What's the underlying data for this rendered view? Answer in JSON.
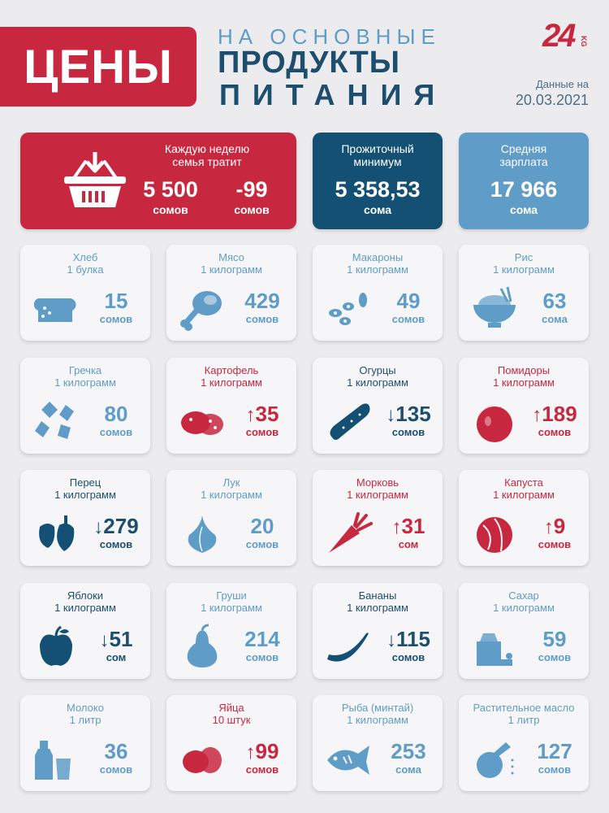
{
  "header": {
    "title": "ЦЕНЫ",
    "subtitle_line1": "НА ОСНОВНЫЕ",
    "subtitle_line2": "ПРОДУКТЫ",
    "subtitle_line3": "ПИТАНИЯ",
    "logo_text": "24",
    "logo_suffix": "KG",
    "date_label": "Данные на",
    "date_value": "20.03.2021"
  },
  "summary": {
    "weekly_label_1": "Каждую неделю",
    "weekly_label_2": "семья тратит",
    "weekly_value": "5 500",
    "weekly_unit": "сомов",
    "weekly_change": "-99",
    "weekly_change_unit": "сомов",
    "minimum_label_1": "Прожиточный",
    "minimum_label_2": "минимум",
    "minimum_value": "5 358,53",
    "minimum_unit": "сома",
    "salary_label_1": "Средняя",
    "salary_label_2": "зарплата",
    "salary_value": "17 966",
    "salary_unit": "сома"
  },
  "colors": {
    "red": "#c8283f",
    "dark": "#135073",
    "light": "#5f9cc7"
  },
  "products": [
    {
      "name": "Хлеб",
      "unit": "1 булка",
      "price": "15",
      "currency": "сомов",
      "trend": "",
      "icon": "bread-icon"
    },
    {
      "name": "Мясо",
      "unit": "1 килограмм",
      "price": "429",
      "currency": "сомов",
      "trend": "",
      "icon": "meat-icon"
    },
    {
      "name": "Макароны",
      "unit": "1 килограмм",
      "price": "49",
      "currency": "сомов",
      "trend": "",
      "icon": "pasta-icon"
    },
    {
      "name": "Рис",
      "unit": "1 килограмм",
      "price": "63",
      "currency": "сома",
      "trend": "",
      "icon": "rice-icon"
    },
    {
      "name": "Гречка",
      "unit": "1 килограмм",
      "price": "80",
      "currency": "сомов",
      "trend": "",
      "icon": "buckwheat-icon"
    },
    {
      "name": "Картофель",
      "unit": "1 килограмм",
      "price": "35",
      "currency": "сомов",
      "trend": "↑",
      "icon": "potato-icon"
    },
    {
      "name": "Огурцы",
      "unit": "1 килограмм",
      "price": "135",
      "currency": "сомов",
      "trend": "↓",
      "icon": "cucumber-icon"
    },
    {
      "name": "Помидоры",
      "unit": "1 килограмм",
      "price": "189",
      "currency": "сомов",
      "trend": "↑",
      "icon": "tomato-icon"
    },
    {
      "name": "Перец",
      "unit": "1 килограмм",
      "price": "279",
      "currency": "сомов",
      "trend": "↓",
      "icon": "pepper-icon"
    },
    {
      "name": "Лук",
      "unit": "1 килограмм",
      "price": "20",
      "currency": "сомов",
      "trend": "",
      "icon": "onion-icon"
    },
    {
      "name": "Морковь",
      "unit": "1 килограмм",
      "price": "31",
      "currency": "сом",
      "trend": "↑",
      "icon": "carrot-icon"
    },
    {
      "name": "Капуста",
      "unit": "1 килограмм",
      "price": "9",
      "currency": "сомов",
      "trend": "↑",
      "icon": "cabbage-icon"
    },
    {
      "name": "Яблоки",
      "unit": "1 килограмм",
      "price": "51",
      "currency": "сом",
      "trend": "↓",
      "icon": "apple-icon"
    },
    {
      "name": "Груши",
      "unit": "1 килограмм",
      "price": "214",
      "currency": "сомов",
      "trend": "",
      "icon": "pear-icon"
    },
    {
      "name": "Бананы",
      "unit": "1 килограмм",
      "price": "115",
      "currency": "сомов",
      "trend": "↓",
      "icon": "banana-icon"
    },
    {
      "name": "Сахар",
      "unit": "1 килограмм",
      "price": "59",
      "currency": "сомов",
      "trend": "",
      "icon": "sugar-icon"
    },
    {
      "name": "Молоко",
      "unit": "1 литр",
      "price": "36",
      "currency": "сомов",
      "trend": "",
      "icon": "milk-icon"
    },
    {
      "name": "Яйца",
      "unit": "10 штук",
      "price": "99",
      "currency": "сомов",
      "trend": "↑",
      "icon": "eggs-icon"
    },
    {
      "name": "Рыба (минтай)",
      "unit": "1 килограмм",
      "price": "253",
      "currency": "сома",
      "trend": "",
      "icon": "fish-icon"
    },
    {
      "name": "Растительное масло",
      "unit": "1 литр",
      "price": "127",
      "currency": "сомов",
      "trend": "",
      "icon": "oil-icon"
    }
  ]
}
